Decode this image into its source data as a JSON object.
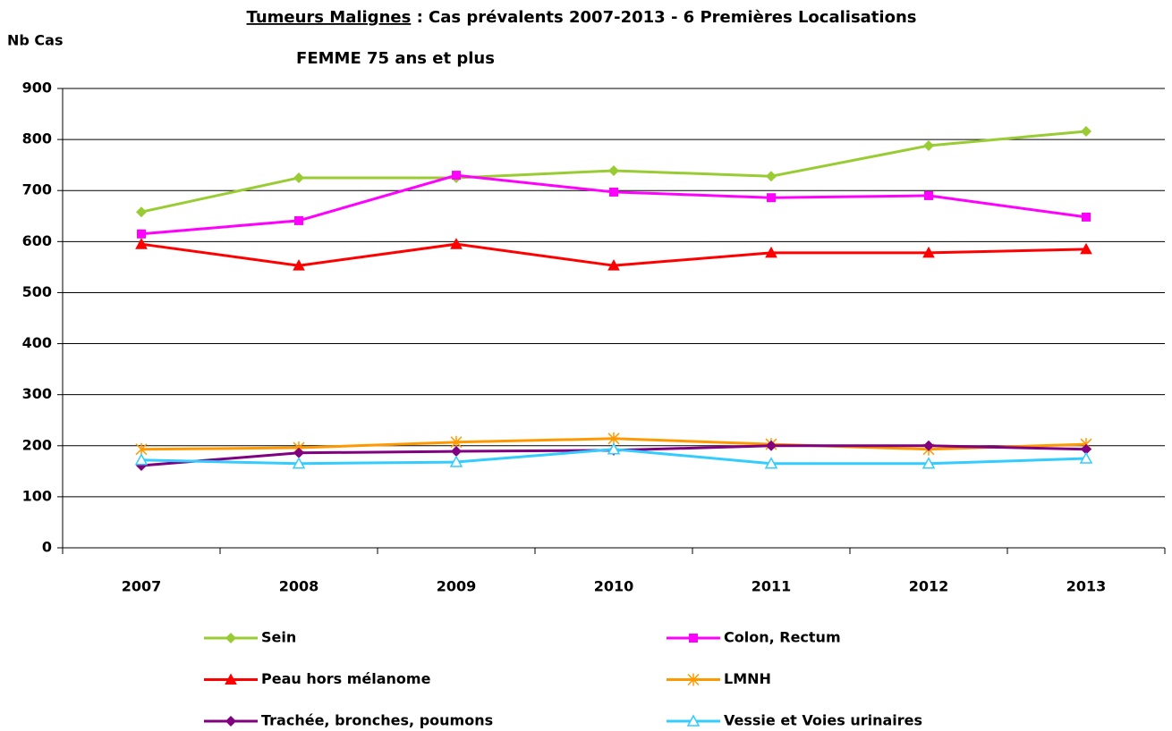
{
  "chart_data": {
    "type": "line",
    "title": [
      "Tumeurs Malignes",
      " : Cas prévalents 2007-2013 - 6 Premières Localisations"
    ],
    "subtitle": "FEMME 75 ans et plus",
    "y_label": "Nb Cas",
    "categories": [
      "2007",
      "2008",
      "2009",
      "2010",
      "2011",
      "2012",
      "2013"
    ],
    "ylim": [
      0,
      900
    ],
    "yticks": [
      0,
      100,
      200,
      300,
      400,
      500,
      600,
      700,
      800,
      900
    ],
    "grid": true,
    "series": [
      {
        "name": "Sein",
        "color": "#99cc33",
        "marker": "diamond",
        "values": [
          658,
          725,
          725,
          739,
          728,
          788,
          816
        ]
      },
      {
        "name": "Colon, Rectum",
        "color": "#ff00ff",
        "marker": "square",
        "values": [
          615,
          641,
          730,
          697,
          686,
          690,
          648
        ]
      },
      {
        "name": "Peau hors mélanome",
        "color": "#ff0000",
        "marker": "triangle",
        "values": [
          595,
          553,
          595,
          553,
          578,
          578,
          585
        ]
      },
      {
        "name": "LMNH",
        "color": "#ff9900",
        "marker": "asterisk",
        "values": [
          193,
          196,
          207,
          214,
          203,
          193,
          203
        ]
      },
      {
        "name": "Trachée, bronches, poumons",
        "color": "#800080",
        "marker": "diamond",
        "values": [
          161,
          186,
          189,
          191,
          200,
          200,
          193
        ]
      },
      {
        "name": "Vessie et Voies urinaires",
        "color": "#33ccff",
        "marker": "open-triangle",
        "values": [
          172,
          165,
          168,
          193,
          165,
          165,
          175
        ]
      }
    ]
  }
}
